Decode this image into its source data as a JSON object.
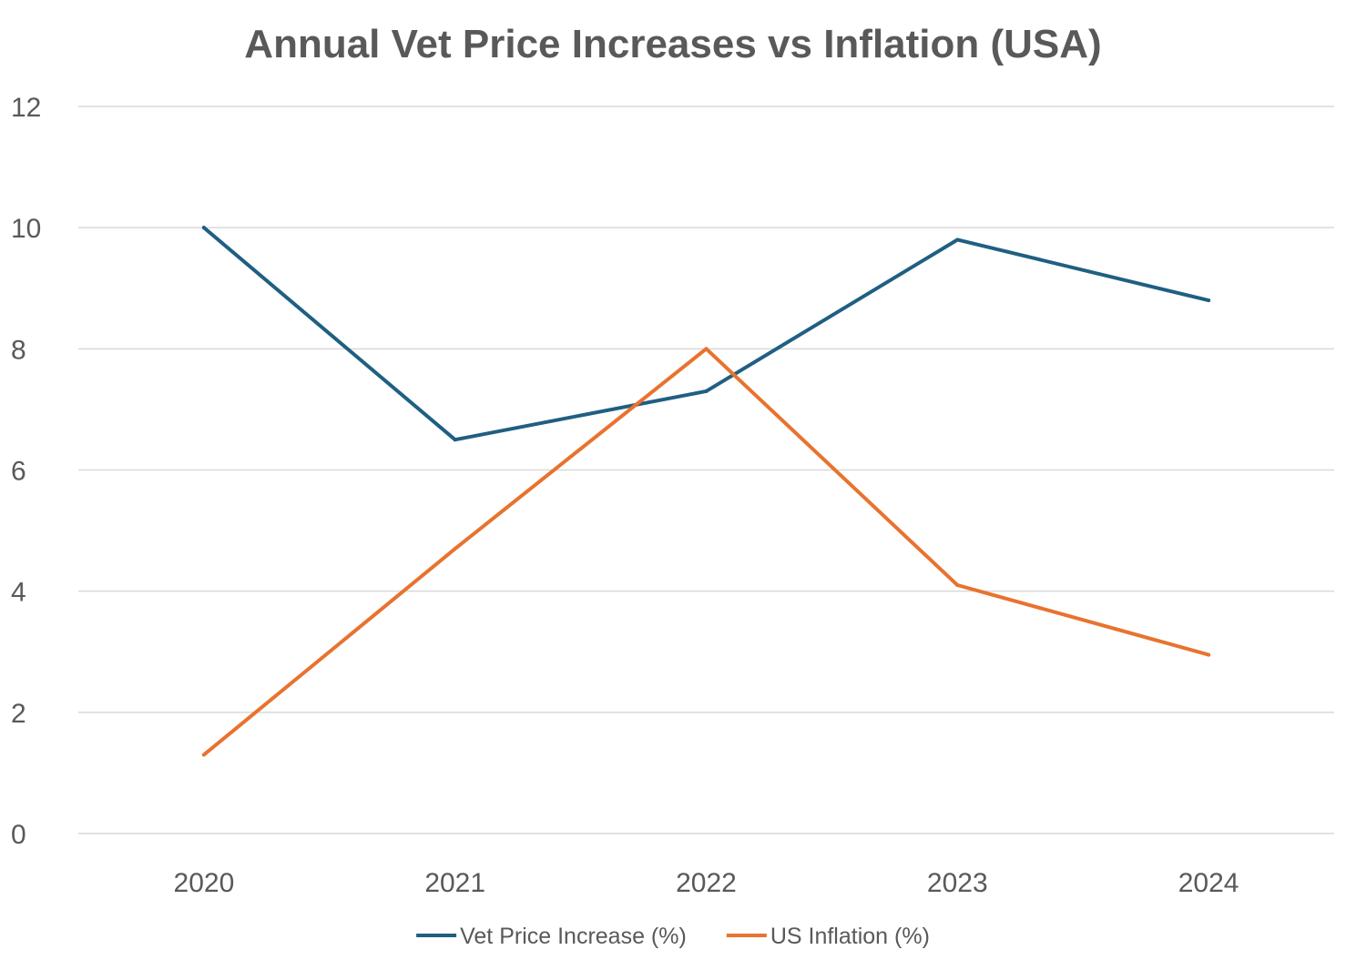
{
  "chart_data": {
    "type": "line",
    "title": "Annual Vet Price Increases vs Inflation (USA)",
    "xlabel": "",
    "ylabel": "",
    "categories": [
      "2020",
      "2021",
      "2022",
      "2023",
      "2024"
    ],
    "ylim": [
      0,
      12
    ],
    "yticks": [
      0,
      2,
      4,
      6,
      8,
      10,
      12
    ],
    "grid": true,
    "legend_position": "bottom",
    "series": [
      {
        "name": "Vet Price Increase (%)",
        "color": "#1f5f82",
        "values": [
          10.0,
          6.5,
          7.3,
          9.8,
          8.8
        ]
      },
      {
        "name": "US Inflation (%)",
        "color": "#e8732e",
        "values": [
          1.3,
          4.7,
          8.0,
          4.1,
          2.95
        ]
      }
    ]
  }
}
